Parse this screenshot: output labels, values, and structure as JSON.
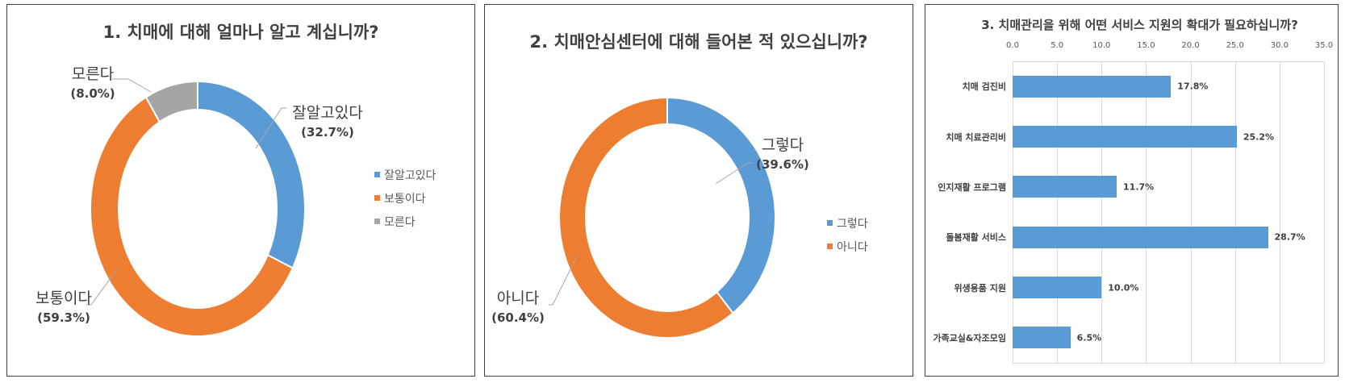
{
  "colors": {
    "blue": "#5B9BD5",
    "orange": "#ED7D31",
    "gray": "#A5A5A5",
    "text": "#404040",
    "grid": "#D9D9D9"
  },
  "chart_data": [
    {
      "type": "pie",
      "variant": "donut",
      "title": "1. 치매에 대해 얼마나 알고 계십니까?",
      "categories": [
        "잘알고있다",
        "보통이다",
        "모른다"
      ],
      "values": [
        32.7,
        59.3,
        8.0
      ],
      "value_labels": [
        "(32.7%)",
        "(59.3%)",
        "(8.0%)"
      ],
      "colors": [
        "#5B9BD5",
        "#ED7D31",
        "#A5A5A5"
      ],
      "legend": [
        "잘알고있다",
        "보통이다",
        "모른다"
      ],
      "legend_position": "right"
    },
    {
      "type": "pie",
      "variant": "donut",
      "title": "2. 치매안심센터에 대해 들어본 적 있으십니까?",
      "categories": [
        "그렇다",
        "아니다"
      ],
      "values": [
        39.6,
        60.4
      ],
      "value_labels": [
        "(39.6%)",
        "(60.4%)"
      ],
      "colors": [
        "#5B9BD5",
        "#ED7D31"
      ],
      "legend": [
        "그렇다",
        "아니다"
      ],
      "legend_position": "right"
    },
    {
      "type": "bar",
      "orientation": "horizontal",
      "title": "3. 치매관리을 위해 어떤 서비스 지원의 확대가 필요하십니까?",
      "categories": [
        "치매 검진비",
        "치매 치료관리비",
        "인지재활 프로그램",
        "돌봄재활 서비스",
        "위생용품 지원",
        "가족교실&자조모임"
      ],
      "values": [
        17.8,
        25.2,
        11.7,
        28.7,
        10.0,
        6.5
      ],
      "value_labels": [
        "17.8%",
        "25.2%",
        "11.7%",
        "28.7%",
        "10.0%",
        "6.5%"
      ],
      "xlabel": "",
      "ylabel": "",
      "xlim": [
        0,
        35
      ],
      "x_ticks": [
        "0.0",
        "5.0",
        "10.0",
        "15.0",
        "20.0",
        "25.0",
        "30.0",
        "35.0"
      ],
      "x_axis_position": "top",
      "grid": true,
      "color": "#5B9BD5"
    }
  ],
  "panel1": {
    "title": "1. 치매에 대해 얼마나 알고 계십니까?",
    "labels": [
      {
        "name": "잘알고있다",
        "pct": "(32.7%)"
      },
      {
        "name": "보통이다",
        "pct": "(59.3%)"
      },
      {
        "name": "모른다",
        "pct": "(8.0%)"
      }
    ],
    "legend": [
      "잘알고있다",
      "보통이다",
      "모른다"
    ]
  },
  "panel2": {
    "title": "2. 치매안심센터에 대해 들어본 적 있으십니까?",
    "labels": [
      {
        "name": "그렇다",
        "pct": "(39.6%)"
      },
      {
        "name": "아니다",
        "pct": "(60.4%)"
      }
    ],
    "legend": [
      "그렇다",
      "아니다"
    ]
  },
  "panel3": {
    "title": "3. 치매관리을 위해 어떤 서비스 지원의 확대가 필요하십니까?",
    "ticks": [
      "0.0",
      "5.0",
      "10.0",
      "15.0",
      "20.0",
      "25.0",
      "30.0",
      "35.0"
    ],
    "bars": [
      {
        "label": "치매 검진비",
        "value": 17.8,
        "text": "17.8%"
      },
      {
        "label": "치매 치료관리비",
        "value": 25.2,
        "text": "25.2%"
      },
      {
        "label": "인지재활 프로그램",
        "value": 11.7,
        "text": "11.7%"
      },
      {
        "label": "돌봄재활 서비스",
        "value": 28.7,
        "text": "28.7%"
      },
      {
        "label": "위생용품 지원",
        "value": 10.0,
        "text": "10.0%"
      },
      {
        "label": "가족교실&자조모임",
        "value": 6.5,
        "text": "6.5%"
      }
    ]
  }
}
